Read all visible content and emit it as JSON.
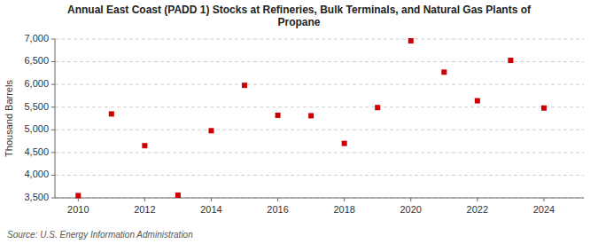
{
  "chart_data": {
    "type": "scatter",
    "title": "Annual East Coast (PADD 1) Stocks at Refineries, Bulk Terminals, and Natural Gas Plants of\nPropane",
    "y_label": "Thousand Barrels",
    "source": "Source: U.S. Energy Information Administration",
    "x": [
      2010,
      2011,
      2012,
      2013,
      2014,
      2015,
      2016,
      2017,
      2018,
      2019,
      2020,
      2021,
      2022,
      2023,
      2024
    ],
    "values": [
      3550,
      5350,
      4650,
      3560,
      4980,
      5980,
      5320,
      5310,
      4700,
      5490,
      6960,
      6270,
      5640,
      6530,
      5480
    ],
    "color": "#cc0000",
    "marker": "square",
    "xlim": [
      2009.3,
      2025.2
    ],
    "xticks": [
      2010,
      2012,
      2014,
      2016,
      2018,
      2020,
      2022,
      2024
    ],
    "ylim": [
      3500,
      7000
    ],
    "yticks": [
      {
        "value": 3500,
        "label": "3,500"
      },
      {
        "value": 4000,
        "label": "4,000"
      },
      {
        "value": 4500,
        "label": "4,500"
      },
      {
        "value": 5000,
        "label": "5,000"
      },
      {
        "value": 5500,
        "label": "5,500"
      },
      {
        "value": 6000,
        "label": "6,000"
      },
      {
        "value": 6500,
        "label": "6,500"
      },
      {
        "value": 7000,
        "label": "7,000"
      }
    ],
    "grid": "y"
  }
}
